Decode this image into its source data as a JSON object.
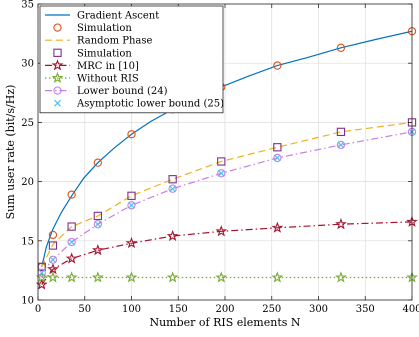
{
  "chart_data": {
    "type": "line",
    "xlabel": "Number of RIS elements N",
    "ylabel": "Sum user rate (bit/s/Hz)",
    "xlim": [
      0,
      400
    ],
    "ylim": [
      10,
      35
    ],
    "xticks": [
      0,
      50,
      100,
      150,
      200,
      250,
      300,
      350,
      400
    ],
    "yticks": [
      10,
      15,
      20,
      25,
      30,
      35
    ],
    "grid": true,
    "legend_position": "top-left",
    "series": [
      {
        "name": "Gradient Ascent",
        "color": "#0072BD",
        "style": "solid",
        "marker": "none",
        "x": [
          4,
          9,
          16,
          25,
          36,
          49,
          64,
          81,
          100,
          121,
          144,
          169,
          196,
          225,
          256,
          289,
          324,
          361,
          400
        ],
        "y": [
          12.8,
          14.5,
          16.0,
          17.4,
          18.8,
          20.3,
          21.6,
          22.8,
          24.0,
          25.1,
          26.1,
          27.1,
          28.0,
          28.9,
          29.8,
          30.5,
          31.3,
          32.0,
          32.7
        ]
      },
      {
        "name": "Simulation",
        "color": "#D95319",
        "style": "none",
        "marker": "circle",
        "x": [
          4,
          16,
          36,
          64,
          100,
          144,
          196,
          256,
          324,
          400
        ],
        "y": [
          12.8,
          15.5,
          18.9,
          21.6,
          24.0,
          26.1,
          28.0,
          29.8,
          31.3,
          32.7
        ]
      },
      {
        "name": "Random Phase",
        "color": "#EDB120",
        "style": "dashed",
        "marker": "none",
        "x": [
          4,
          16,
          36,
          64,
          100,
          144,
          196,
          256,
          324,
          400
        ],
        "y": [
          12.8,
          14.7,
          16.2,
          17.1,
          18.8,
          20.2,
          21.7,
          22.9,
          24.2,
          25.0
        ]
      },
      {
        "name": "Simulation",
        "color": "#7E2F8E",
        "style": "none",
        "marker": "square",
        "x": [
          4,
          16,
          36,
          64,
          100,
          144,
          196,
          256,
          324,
          400
        ],
        "y": [
          12.8,
          14.6,
          16.2,
          17.1,
          18.8,
          20.2,
          21.7,
          22.9,
          24.2,
          25.0
        ]
      },
      {
        "name": "MRC in [10]",
        "color": "#A2142F",
        "style": "dashdot",
        "marker": "star",
        "x": [
          4,
          16,
          36,
          64,
          100,
          144,
          196,
          256,
          324,
          400
        ],
        "y": [
          11.3,
          12.6,
          13.5,
          14.2,
          14.8,
          15.4,
          15.8,
          16.1,
          16.4,
          16.6
        ]
      },
      {
        "name": "Without RIS",
        "color": "#77AC30",
        "style": "dotted",
        "marker": "star",
        "x": [
          4,
          16,
          36,
          64,
          100,
          144,
          196,
          256,
          324,
          400
        ],
        "y": [
          11.9,
          11.9,
          11.9,
          11.9,
          11.9,
          11.9,
          11.9,
          11.9,
          11.9,
          11.9
        ]
      },
      {
        "name": "Lower bound (24)",
        "color": "#C77FE3",
        "style": "dashdot",
        "marker": "circle",
        "x": [
          4,
          16,
          36,
          64,
          100,
          144,
          196,
          256,
          324,
          400
        ],
        "y": [
          12.3,
          13.4,
          14.9,
          16.4,
          18.0,
          19.4,
          20.7,
          22.0,
          23.1,
          24.2
        ]
      },
      {
        "name": "Asymptotic lower bound (25)",
        "color": "#4DBEEE",
        "style": "none",
        "marker": "x",
        "x": [
          4,
          16,
          36,
          64,
          100,
          144,
          196,
          256,
          324,
          400
        ],
        "y": [
          12.3,
          13.4,
          14.9,
          16.4,
          18.0,
          19.4,
          20.7,
          22.0,
          23.1,
          24.2
        ]
      }
    ]
  }
}
